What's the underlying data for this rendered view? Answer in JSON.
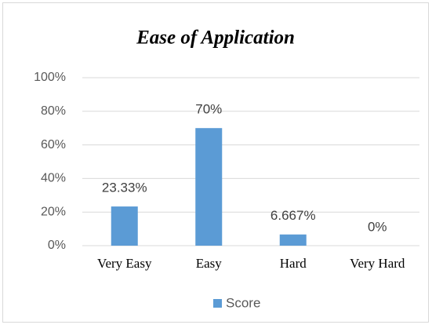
{
  "chart_data": {
    "type": "bar",
    "title": "Ease of Application",
    "categories": [
      "Very Easy",
      "Easy",
      "Hard",
      "Very Hard"
    ],
    "series": [
      {
        "name": "Score",
        "color": "#5b9bd5",
        "values": [
          23.33,
          70,
          6.667,
          0
        ],
        "value_labels": [
          "23.33%",
          "70%",
          "6.667%",
          "0%"
        ]
      }
    ],
    "ylim": [
      0,
      100
    ],
    "yticks": [
      {
        "value": 0,
        "label": "0%"
      },
      {
        "value": 20,
        "label": "20%"
      },
      {
        "value": 40,
        "label": "40%"
      },
      {
        "value": 60,
        "label": "60%"
      },
      {
        "value": 80,
        "label": "80%"
      },
      {
        "value": 100,
        "label": "100%"
      }
    ],
    "grid": true,
    "legend": "bottom"
  }
}
